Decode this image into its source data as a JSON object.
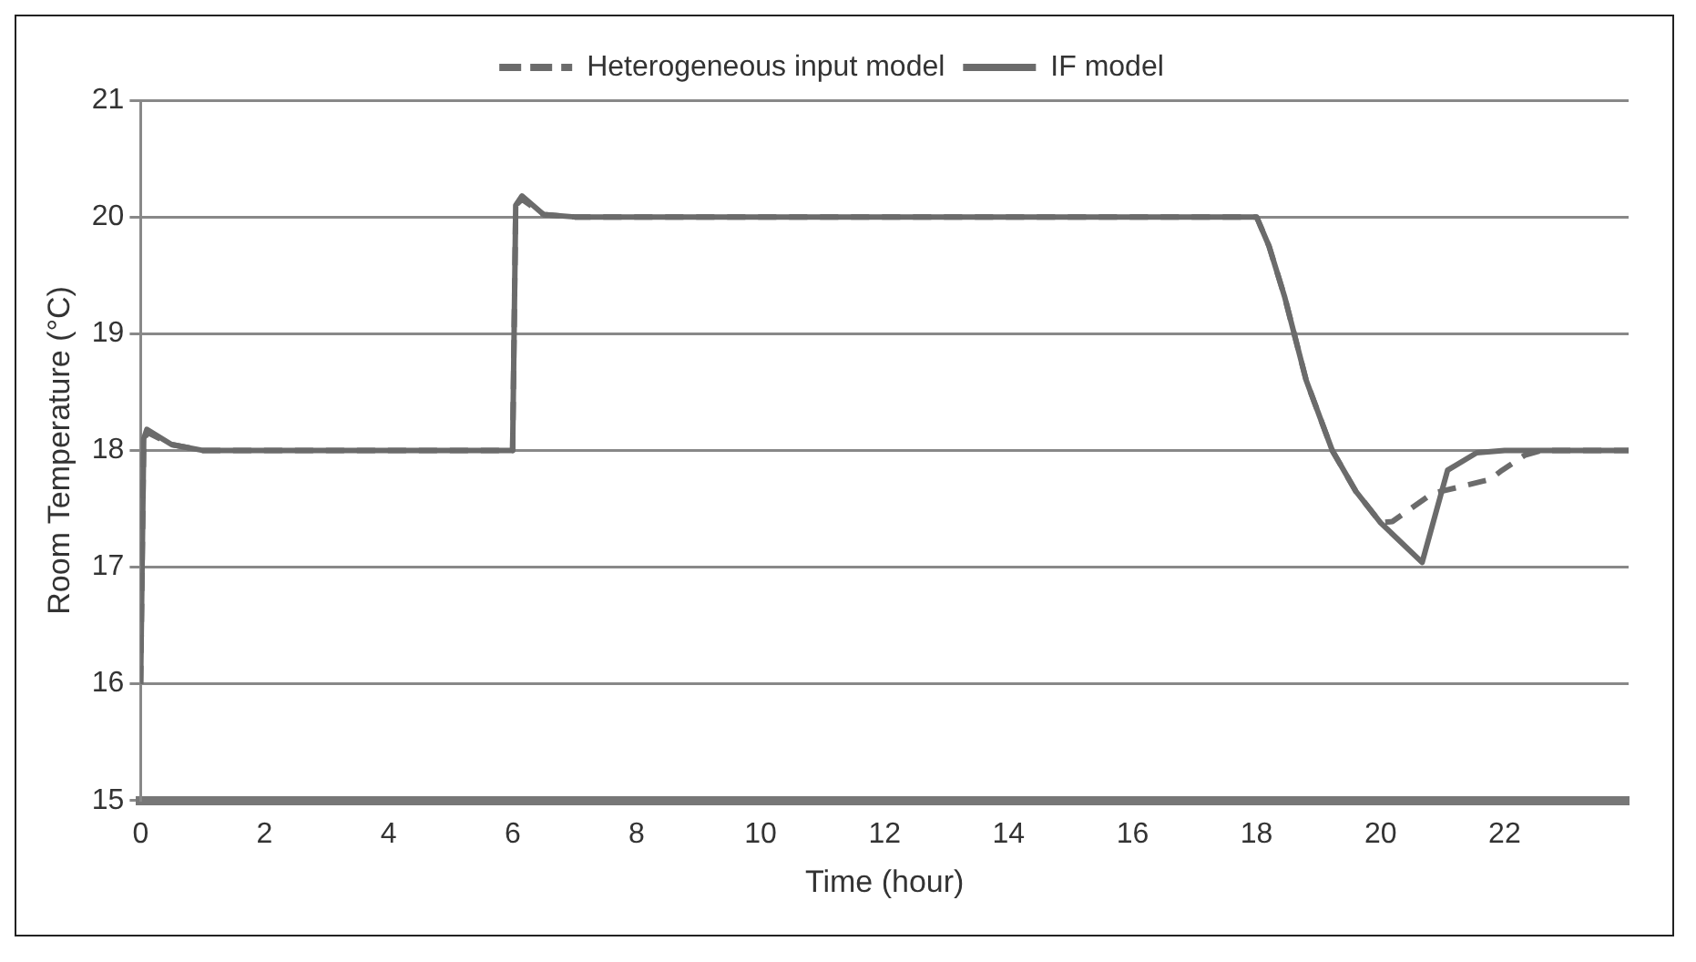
{
  "chart_data": {
    "type": "line",
    "xlabel": "Time (hour)",
    "ylabel": "Room Temperature (°C)",
    "xlim": [
      0,
      24
    ],
    "xticks": [
      0,
      2,
      4,
      6,
      8,
      10,
      12,
      14,
      16,
      18,
      20,
      22
    ],
    "ylim": [
      15,
      21
    ],
    "yticks": [
      15,
      16,
      17,
      18,
      19,
      20,
      21
    ],
    "grid": "y",
    "legend": "top",
    "marker": "none",
    "series": [
      {
        "name": "Heterogeneous input model",
        "color": "#6b6b6b",
        "line_style": "dashed",
        "x": [
          0,
          0.05,
          0.12,
          0.5,
          1,
          6,
          6.05,
          6.15,
          6.5,
          7,
          18,
          18.2,
          18.45,
          18.8,
          19.22,
          19.6,
          20.0,
          20.19,
          20.83,
          21.76,
          21.96,
          22.33,
          22.6,
          24
        ],
        "values": [
          16,
          18.1,
          18.15,
          18.05,
          18,
          18,
          20.1,
          20.15,
          20.02,
          20,
          20,
          19.75,
          19.32,
          18.6,
          18.0,
          17.65,
          17.38,
          17.39,
          17.63,
          17.75,
          17.83,
          17.96,
          18,
          18
        ]
      },
      {
        "name": "IF model",
        "color": "#6b6b6b",
        "line_style": "solid",
        "x": [
          0,
          0.05,
          0.1,
          0.5,
          1,
          6,
          6.05,
          6.15,
          6.5,
          7,
          18,
          18.2,
          18.45,
          18.8,
          19.22,
          19.6,
          20.0,
          20.67,
          21.08,
          21.55,
          22,
          24
        ],
        "values": [
          16,
          18.1,
          18.18,
          18.05,
          18,
          18,
          20.1,
          20.18,
          20.02,
          20,
          20,
          19.75,
          19.32,
          18.6,
          18.0,
          17.65,
          17.38,
          17.04,
          17.83,
          17.98,
          18,
          18
        ]
      }
    ]
  }
}
